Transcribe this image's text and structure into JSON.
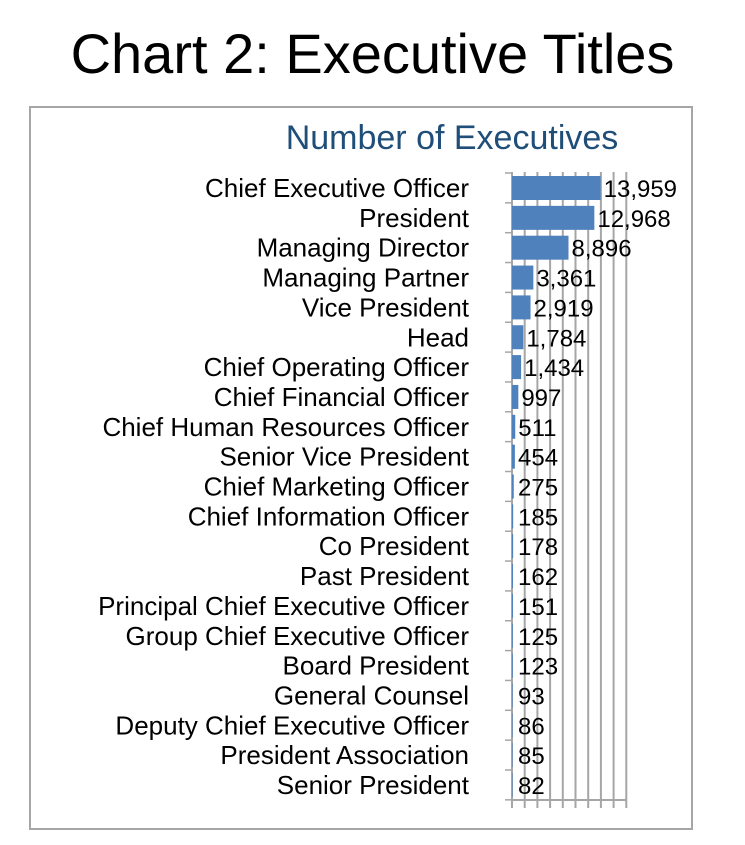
{
  "title": "Chart 2: Executive Titles",
  "chart_data": {
    "type": "bar",
    "orientation": "horizontal",
    "title": "Number of Executives",
    "xlabel": "",
    "ylabel": "",
    "xlim": [
      0,
      20000
    ],
    "grid": true,
    "legend": "none",
    "bar_color": "#4f81bd",
    "title_color": "#1f4e79",
    "categories": [
      "Chief Executive Officer",
      "President",
      "Managing Director",
      "Managing Partner",
      "Vice President",
      "Head",
      "Chief Operating Officer",
      "Chief Financial Officer",
      "Chief Human Resources Officer",
      "Senior Vice President",
      "Chief Marketing Officer",
      "Chief Information Officer",
      "Co President",
      "Past President",
      "Principal Chief Executive Officer",
      "Group Chief Executive Officer",
      "Board President",
      "General Counsel",
      "Deputy Chief Executive Officer",
      "President Association",
      "Senior President"
    ],
    "values": [
      13959,
      12968,
      8896,
      3361,
      2919,
      1784,
      1434,
      997,
      511,
      454,
      275,
      185,
      178,
      162,
      151,
      125,
      123,
      93,
      86,
      85,
      82
    ],
    "value_labels": [
      "13,959",
      "12,968",
      "8,896",
      "3,361",
      "2,919",
      "1,784",
      "1,434",
      "997",
      "511",
      "454",
      "275",
      "185",
      "178",
      "162",
      "151",
      "125",
      "123",
      "93",
      "86",
      "85",
      "82"
    ]
  }
}
